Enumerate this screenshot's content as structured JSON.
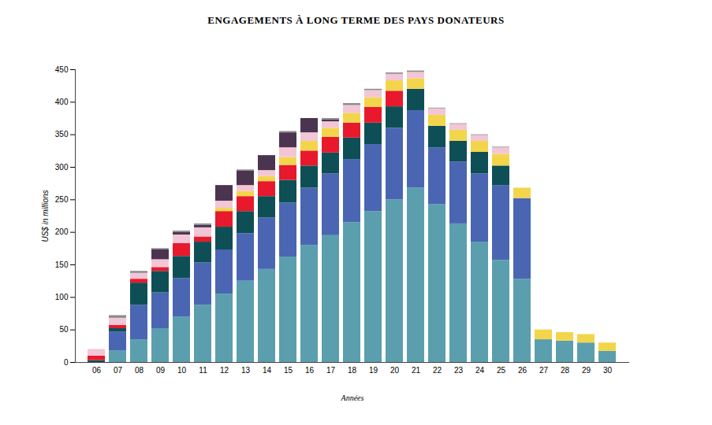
{
  "chart_data": {
    "type": "bar",
    "title": "ENGAGEMENTS À LONG TERME DES PAYS DONATEURS",
    "x_label": "Années",
    "y_label": "US$ in millions",
    "stacked": true,
    "categories": [
      "06",
      "07",
      "08",
      "09",
      "10",
      "11",
      "12",
      "13",
      "14",
      "15",
      "16",
      "17",
      "18",
      "19",
      "20",
      "21",
      "22",
      "23",
      "24",
      "25",
      "26",
      "27",
      "28",
      "29",
      "30"
    ],
    "series": [
      {
        "color": "#5b9fae",
        "values": [
          0,
          18,
          35,
          52,
          70,
          88,
          105,
          125,
          143,
          162,
          180,
          195,
          215,
          232,
          250,
          268,
          243,
          213,
          185,
          157,
          128,
          35,
          33,
          30,
          17
        ]
      },
      {
        "color": "#4a66b2",
        "values": [
          0,
          29,
          53,
          55,
          59,
          65,
          68,
          73,
          79,
          83,
          88,
          95,
          97,
          103,
          110,
          119,
          87,
          95,
          105,
          115,
          124,
          0,
          0,
          0,
          0
        ]
      },
      {
        "color": "#0e4f56",
        "values": [
          3,
          5,
          34,
          33,
          34,
          32,
          35,
          34,
          33,
          35,
          34,
          32,
          33,
          33,
          33,
          33,
          33,
          32,
          33,
          30,
          0,
          0,
          0,
          0,
          0
        ]
      },
      {
        "color": "#e8192c",
        "values": [
          7,
          5,
          6,
          6,
          20,
          8,
          24,
          23,
          23,
          23,
          23,
          24,
          23,
          24,
          24,
          0,
          0,
          0,
          0,
          0,
          0,
          0,
          0,
          0,
          0
        ]
      },
      {
        "color": "#f3d54c",
        "values": [
          0,
          0,
          0,
          0,
          0,
          0,
          5,
          8,
          8,
          12,
          15,
          14,
          15,
          15,
          16,
          16,
          17,
          17,
          17,
          18,
          16,
          15,
          13,
          13,
          13
        ]
      },
      {
        "color": "#f2c6d6",
        "values": [
          10,
          11,
          9,
          12,
          13,
          14,
          11,
          9,
          9,
          15,
          13,
          10,
          12,
          11,
          10,
          10,
          10,
          9,
          9,
          10,
          0,
          0,
          0,
          0,
          0
        ]
      },
      {
        "color": "#4b3450",
        "values": [
          0,
          0,
          0,
          15,
          4,
          4,
          24,
          22,
          23,
          23,
          22,
          3,
          0,
          0,
          0,
          0,
          0,
          0,
          0,
          0,
          0,
          0,
          0,
          0,
          0
        ]
      },
      {
        "color": "#8a8a8a",
        "values": [
          0,
          4,
          3,
          2,
          2,
          2,
          0,
          2,
          0,
          2,
          0,
          2,
          3,
          2,
          2,
          2,
          1,
          1,
          1,
          1,
          0,
          0,
          0,
          0,
          0
        ]
      }
    ],
    "ylim": [
      0,
      450
    ],
    "yticks": [
      0,
      50,
      100,
      150,
      200,
      250,
      300,
      350,
      400,
      450
    ],
    "grid": false
  }
}
